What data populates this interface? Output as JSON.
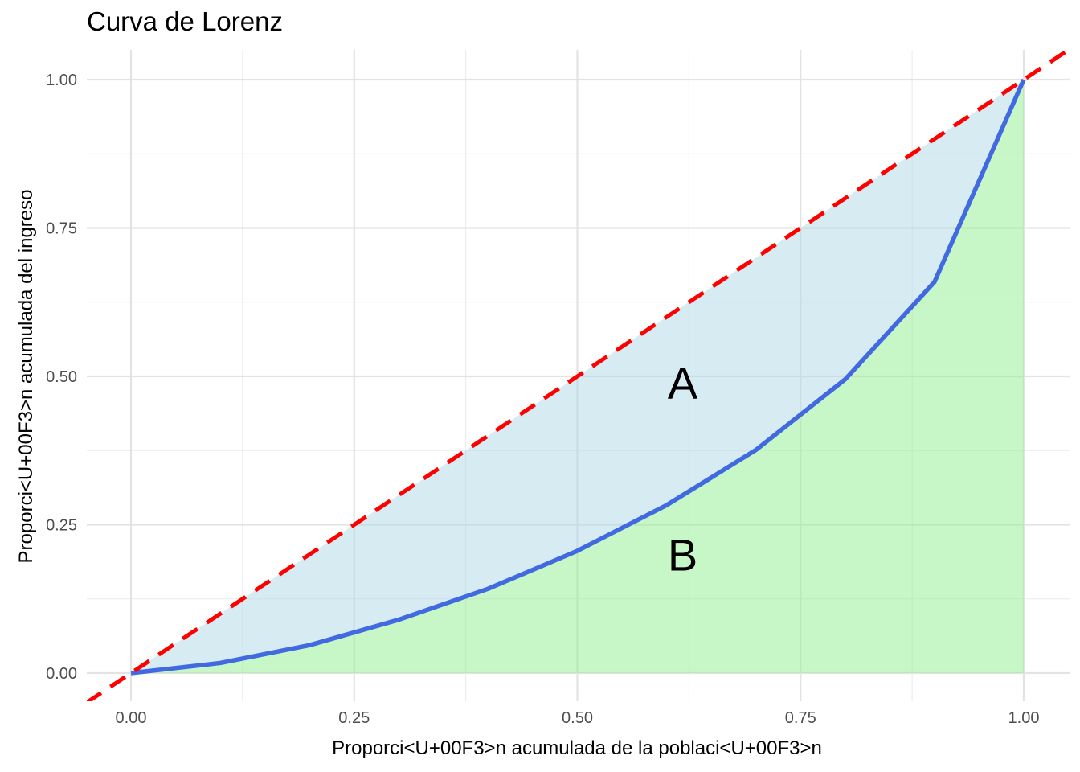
{
  "chart_data": {
    "type": "area",
    "title": "Curva de Lorenz",
    "xlabel": "Proporci<U+00F3>n acumulada de la poblaci<U+00F3>n",
    "ylabel": "Proporci<U+00F3>n acumulada del ingreso",
    "xlim": [
      0,
      1
    ],
    "ylim": [
      0,
      1
    ],
    "x_ticks": [
      "0.00",
      "0.25",
      "0.50",
      "0.75",
      "1.00"
    ],
    "y_ticks": [
      "0.00",
      "0.25",
      "0.50",
      "0.75",
      "1.00"
    ],
    "grid": true,
    "series": [
      {
        "type": "line",
        "color": "#4169e1",
        "x": [
          0,
          0.1,
          0.2,
          0.3,
          0.4,
          0.5,
          0.6,
          0.7,
          0.8,
          0.9,
          1.0
        ],
        "y": [
          0,
          0.017,
          0.047,
          0.09,
          0.142,
          0.206,
          0.283,
          0.376,
          0.495,
          0.659,
          1.0
        ]
      },
      {
        "type": "line",
        "style": "dashed",
        "color": "#ff0000",
        "x": [
          0,
          1
        ],
        "y": [
          0,
          1
        ]
      }
    ],
    "fills": [
      {
        "between": "equality-and-curve",
        "color": "#add8e6"
      },
      {
        "between": "curve-and-axis",
        "color": "#90ee90"
      }
    ],
    "annotations": [
      {
        "text": "A",
        "x": 0.6,
        "y": 0.49
      },
      {
        "text": "B",
        "x": 0.6,
        "y": 0.2
      }
    ]
  }
}
